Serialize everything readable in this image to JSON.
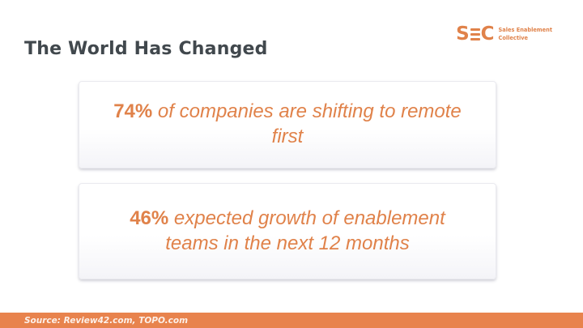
{
  "slide": {
    "title": "The World Has Changed",
    "logo": {
      "acronym_s": "S",
      "acronym_c": "C",
      "name_line1": "Sales Enablement",
      "name_line2": "Collective"
    },
    "cards": [
      {
        "stat": "74%",
        "text": " of companies are shifting to remote first"
      },
      {
        "stat": "46%",
        "text": " expected growth of enablement teams in the next 12 months"
      }
    ],
    "footer": {
      "source": "Source: Review42.com, TOPO.com"
    },
    "colors": {
      "accent_orange": "#e0824a",
      "footer_bar_orange": "#e8834d",
      "title_charcoal": "#41484d",
      "card_background": "#ffffff"
    }
  }
}
